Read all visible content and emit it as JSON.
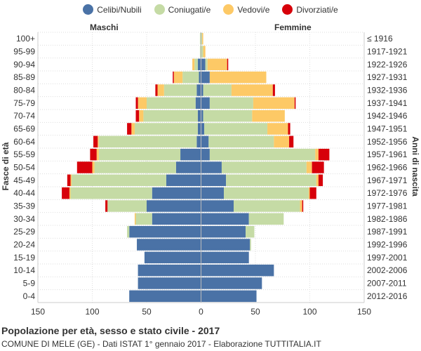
{
  "chart_data": {
    "type": "bar",
    "orientation": "horizontal-population-pyramid",
    "title": "Popolazione per età, sesso e stato civile - 2017",
    "subtitle": "COMUNE DI MELE (GE) - Dati ISTAT 1° gennaio 2017 - Elaborazione TUTTITALIA.IT",
    "left_label": "Maschi",
    "right_label": "Femmine",
    "ylabel_left": "Fasce di età",
    "ylabel_right": "Anni di nascita",
    "xlim": [
      -150,
      150
    ],
    "x_ticks": [
      -150,
      -100,
      -50,
      0,
      50,
      100,
      150
    ],
    "x_tick_labels": [
      "150",
      "100",
      "50",
      "0",
      "50",
      "100",
      "150"
    ],
    "legend": [
      {
        "name": "Celibi/Nubili",
        "color": "#4a72a6"
      },
      {
        "name": "Coniugati/e",
        "color": "#c5dba5"
      },
      {
        "name": "Vedovi/e",
        "color": "#fdc966"
      },
      {
        "name": "Divorziati/e",
        "color": "#d7000a"
      }
    ],
    "age_groups": [
      "100+",
      "95-99",
      "90-94",
      "85-89",
      "80-84",
      "75-79",
      "70-74",
      "65-69",
      "60-64",
      "55-59",
      "50-54",
      "45-49",
      "40-44",
      "35-39",
      "30-34",
      "25-29",
      "20-24",
      "15-19",
      "10-14",
      "5-9",
      "0-4"
    ],
    "birth_years": [
      "≤ 1916",
      "1917-1921",
      "1922-1926",
      "1927-1931",
      "1932-1936",
      "1937-1941",
      "1942-1946",
      "1947-1951",
      "1952-1956",
      "1957-1961",
      "1962-1966",
      "1967-1971",
      "1972-1976",
      "1977-1981",
      "1982-1986",
      "1987-1991",
      "1992-1996",
      "1997-2001",
      "2002-2006",
      "2007-2011",
      "2012-2016"
    ],
    "males": {
      "celibi": [
        0,
        0,
        3,
        2,
        4,
        5,
        3,
        3,
        4,
        19,
        23,
        32,
        45,
        50,
        45,
        66,
        59,
        52,
        58,
        58,
        66
      ],
      "coniugati": [
        1,
        1,
        3,
        15,
        30,
        45,
        50,
        58,
        90,
        75,
        75,
        87,
        75,
        36,
        15,
        2,
        0,
        0,
        0,
        0,
        0
      ],
      "vedovi": [
        0,
        0,
        2,
        8,
        6,
        8,
        4,
        3,
        1,
        2,
        2,
        1,
        1,
        0,
        1,
        0,
        0,
        0,
        0,
        0,
        0
      ],
      "divorziati": [
        0,
        0,
        0,
        1,
        2,
        2,
        3,
        4,
        4,
        6,
        14,
        3,
        7,
        2,
        0,
        0,
        0,
        0,
        0,
        0,
        0
      ]
    },
    "females": {
      "nubili": [
        0,
        0,
        4,
        8,
        2,
        8,
        2,
        3,
        7,
        8,
        19,
        23,
        21,
        30,
        44,
        41,
        45,
        44,
        67,
        56,
        51
      ],
      "coniugate": [
        1,
        2,
        2,
        0,
        26,
        40,
        45,
        58,
        60,
        97,
        78,
        83,
        78,
        61,
        32,
        8,
        1,
        0,
        0,
        0,
        0
      ],
      "vedove": [
        1,
        2,
        18,
        52,
        38,
        38,
        30,
        19,
        14,
        3,
        5,
        2,
        1,
        2,
        0,
        0,
        0,
        0,
        0,
        0,
        0
      ],
      "divorziate": [
        0,
        0,
        1,
        0,
        2,
        1,
        0,
        2,
        4,
        10,
        11,
        4,
        6,
        1,
        0,
        0,
        0,
        0,
        0,
        0,
        0
      ]
    }
  }
}
